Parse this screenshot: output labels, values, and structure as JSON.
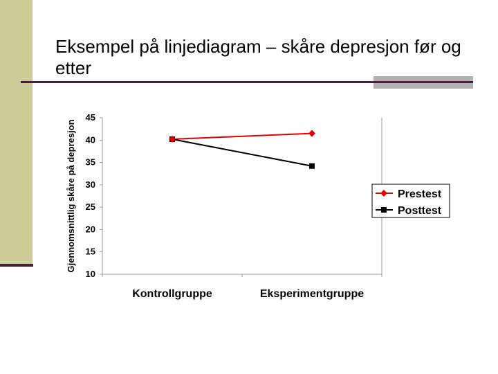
{
  "slide": {
    "title": "Eksempel på linjediagram – skåre depresjon før og etter",
    "accent_color": "#4a1d3a",
    "sidebar_color": "#cccc99"
  },
  "chart_data": {
    "type": "line",
    "title": "",
    "xlabel": "",
    "ylabel": "Gjennomsnittlig skåre på depresjon",
    "categories": [
      "Kontrollgruppe",
      "Eksperimentgruppe"
    ],
    "series": [
      {
        "name": "Prestest",
        "values": [
          40.2,
          41.5
        ],
        "color": "#e00000",
        "marker": "diamond"
      },
      {
        "name": "Posttest",
        "values": [
          40.2,
          34.2
        ],
        "color": "#000000",
        "marker": "square"
      }
    ],
    "ylim": [
      10,
      45
    ],
    "yticks": [
      10,
      15,
      20,
      25,
      30,
      35,
      40,
      45
    ],
    "grid": false,
    "legend_position": "right"
  }
}
